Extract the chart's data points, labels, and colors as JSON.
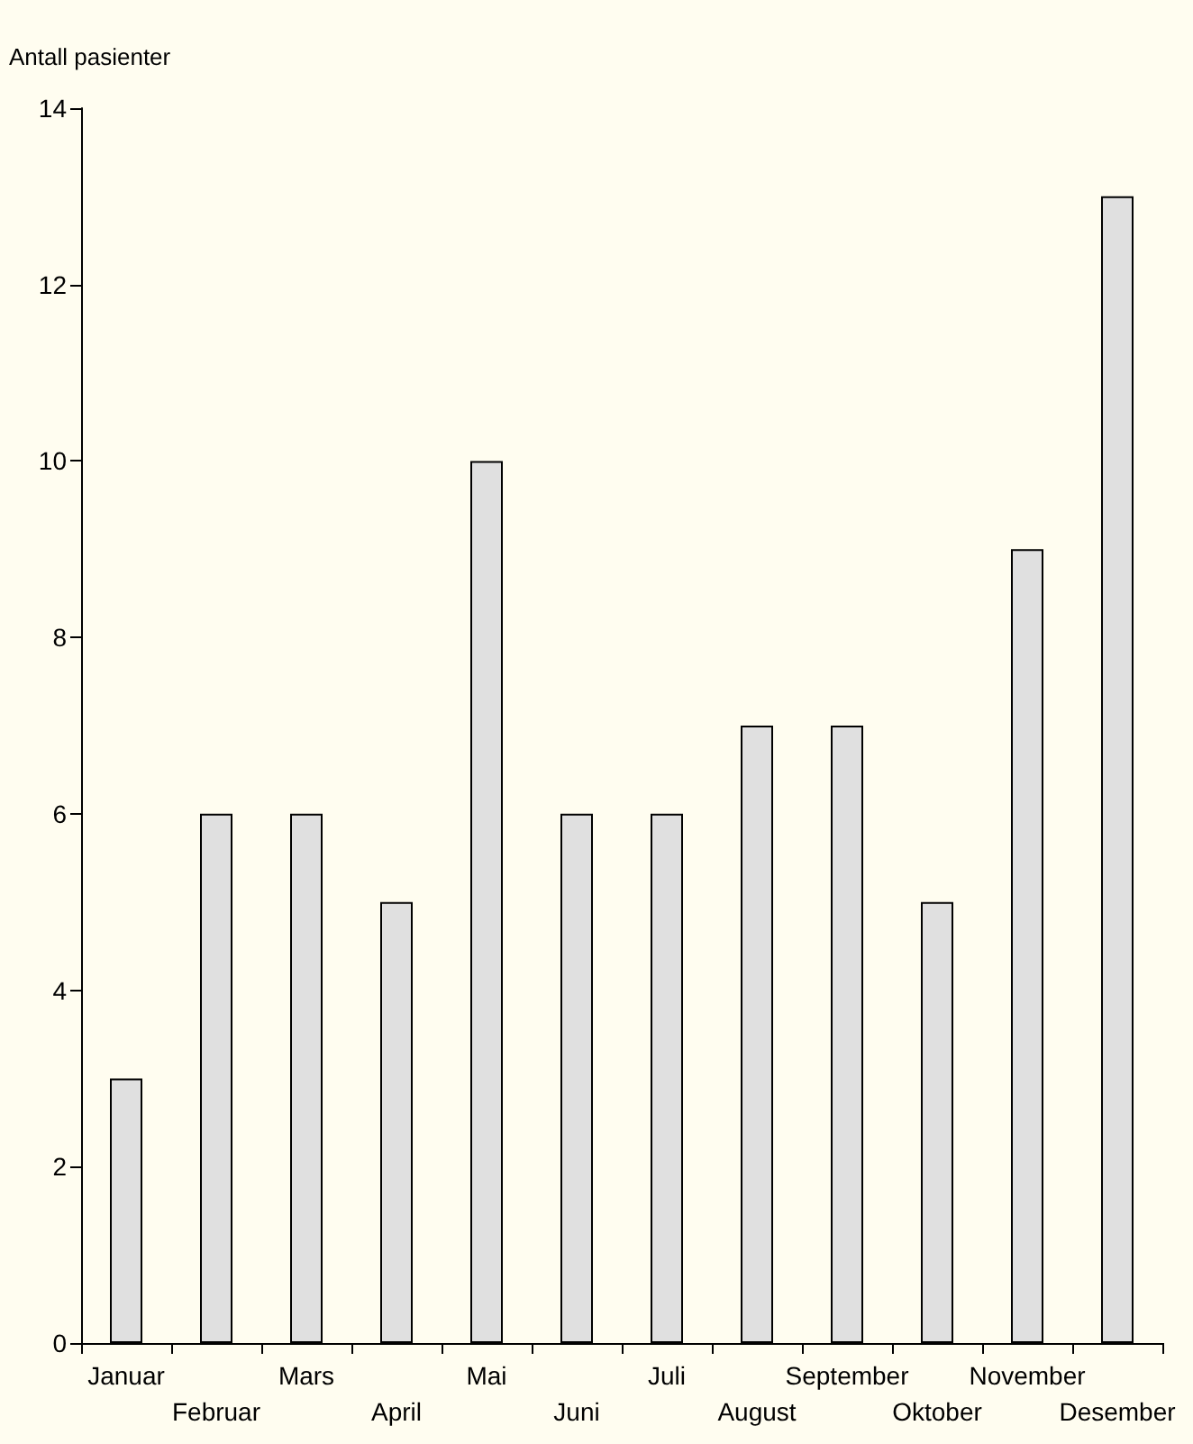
{
  "chart_data": {
    "type": "bar",
    "ylabel": "Antall pasienter",
    "categories": [
      "Januar",
      "Februar",
      "Mars",
      "April",
      "Mai",
      "Juni",
      "Juli",
      "August",
      "September",
      "Oktober",
      "November",
      "Desember"
    ],
    "values": [
      3,
      6,
      6,
      5,
      10,
      6,
      6,
      7,
      7,
      5,
      9,
      13
    ],
    "color": "#e0e0e0",
    "ylim": [
      0,
      14
    ],
    "yticks": [
      0,
      2,
      4,
      6,
      8,
      10,
      12,
      14
    ],
    "grid": false
  }
}
